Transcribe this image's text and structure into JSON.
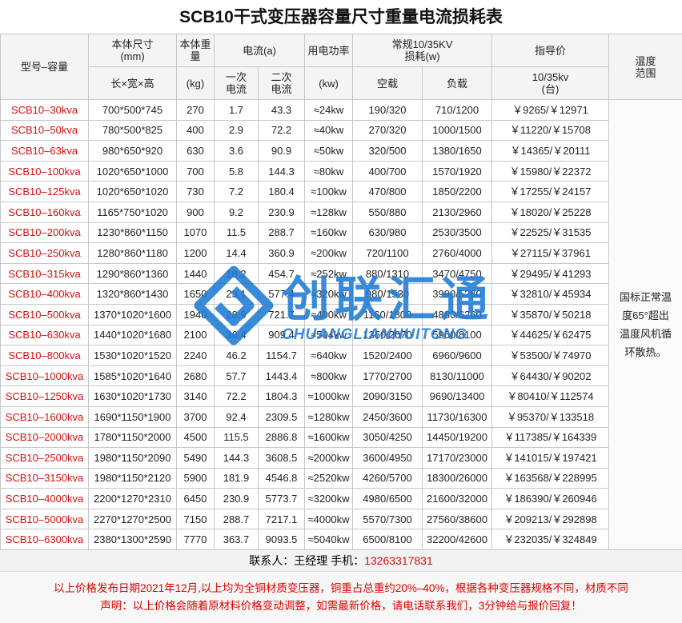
{
  "title": "SCB10干式变压器容量尺寸重量电流损耗表",
  "header": {
    "model": "型号–容量",
    "dims": [
      "本体尺寸",
      "(mm)"
    ],
    "dims_sub": "长×宽×高",
    "weight": "本体重量",
    "weight_unit": "(kg)",
    "current": "电流(a)",
    "current_primary": "一次电流",
    "current_secondary": "二次电流",
    "power": "用电功率",
    "power_unit": "(kw)",
    "loss": [
      "常规10/35KV",
      "损耗(w)"
    ],
    "loss_noload": "空载",
    "loss_load": "负载",
    "price": "指导价",
    "price_sub": [
      "10/35kv",
      "(台)"
    ],
    "temp": "温度范围"
  },
  "temp_note": "国标正常温度65°超出温度风机循环散热。",
  "table": {
    "rows": [
      [
        "SCB10–30kva",
        "700*500*745",
        "270",
        "1.7",
        "43.3",
        "≈24kw",
        "190/320",
        "710/1200",
        "￥9265/￥12971"
      ],
      [
        "SCB10–50kva",
        "780*500*825",
        "400",
        "2.9",
        "72.2",
        "≈40kw",
        "270/320",
        "1000/1500",
        "￥11220/￥15708"
      ],
      [
        "SCB10–63kva",
        "980*650*920",
        "630",
        "3.6",
        "90.9",
        "≈50kw",
        "320/500",
        "1380/1650",
        "￥14365/￥20111"
      ],
      [
        "SCB10–100kva",
        "1020*650*1000",
        "700",
        "5.8",
        "144.3",
        "≈80kw",
        "400/700",
        "1570/1920",
        "￥15980/￥22372"
      ],
      [
        "SCB10–125kva",
        "1020*650*1020",
        "730",
        "7.2",
        "180.4",
        "≈100kw",
        "470/800",
        "1850/2200",
        "￥17255/￥24157"
      ],
      [
        "SCB10–160kva",
        "1165*750*1020",
        "900",
        "9.2",
        "230.9",
        "≈128kw",
        "550/880",
        "2130/2960",
        "￥18020/￥25228"
      ],
      [
        "SCB10–200kva",
        "1230*860*1150",
        "1070",
        "11.5",
        "288.7",
        "≈160kw",
        "630/980",
        "2530/3500",
        "￥22525/￥31535"
      ],
      [
        "SCB10–250kva",
        "1280*860*1180",
        "1200",
        "14.4",
        "360.9",
        "≈200kw",
        "720/1100",
        "2760/4000",
        "￥27115/￥37961"
      ],
      [
        "SCB10–315kva",
        "1290*860*1360",
        "1440",
        "18.2",
        "454.7",
        "≈252kw",
        "880/1310",
        "3470/4750",
        "￥29495/￥41293"
      ],
      [
        "SCB10–400kva",
        "1320*860*1430",
        "1650",
        "23.1",
        "577.4",
        "≈320kw",
        "980/1530",
        "3990/5280",
        "￥32810/￥45934"
      ],
      [
        "SCB10–500kva",
        "1370*1020*1600",
        "1940",
        "28.9",
        "721.7",
        "≈400kw",
        "1160/1800",
        "4880/6260",
        "￥35870/￥50218"
      ],
      [
        "SCB10–630kva",
        "1440*1020*1680",
        "2100",
        "36.4",
        "909.4",
        "≈504kw",
        "1350/2070",
        "5960/8100",
        "￥44625/￥62475"
      ],
      [
        "SCB10–800kva",
        "1530*1020*1520",
        "2240",
        "46.2",
        "1154.7",
        "≈640kw",
        "1520/2400",
        "6960/9600",
        "￥53500/￥74970"
      ],
      [
        "SCB10–1000kva",
        "1585*1020*1640",
        "2680",
        "57.7",
        "1443.4",
        "≈800kw",
        "1770/2700",
        "8130/11000",
        "￥64430/￥90202"
      ],
      [
        "SCB10–1250kva",
        "1630*1020*1730",
        "3140",
        "72.2",
        "1804.3",
        "≈1000kw",
        "2090/3150",
        "9690/13400",
        "￥80410/￥112574"
      ],
      [
        "SCB10–1600kva",
        "1690*1150*1900",
        "3700",
        "92.4",
        "2309.5",
        "≈1280kw",
        "2450/3600",
        "11730/16300",
        "￥95370/￥133518"
      ],
      [
        "SCB10–2000kva",
        "1780*1150*2000",
        "4500",
        "115.5",
        "2886.8",
        "≈1600kw",
        "3050/4250",
        "14450/19200",
        "￥117385/￥164339"
      ],
      [
        "SCB10–2500kva",
        "1980*1150*2090",
        "5490",
        "144.3",
        "3608.5",
        "≈2000kw",
        "3600/4950",
        "17170/23000",
        "￥141015/￥197421"
      ],
      [
        "SCB10–3150kva",
        "1980*1150*2120",
        "5900",
        "181.9",
        "4546.8",
        "≈2520kw",
        "4260/5700",
        "18300/26000",
        "￥163568/￥228995"
      ],
      [
        "SCB10–4000kva",
        "2200*1270*2310",
        "6450",
        "230.9",
        "5773.7",
        "≈3200kw",
        "4980/6500",
        "21600/32000",
        "￥186390/￥260946"
      ],
      [
        "SCB10–5000kva",
        "2270*1270*2500",
        "7150",
        "288.7",
        "7217.1",
        "≈4000kw",
        "5570/7300",
        "27560/38600",
        "￥209213/￥292898"
      ],
      [
        "SCB10–6300kva",
        "2380*1300*2590",
        "7770",
        "363.7",
        "9093.5",
        "≈5040kw",
        "6500/8100",
        "32200/42600",
        "￥232035/￥324849"
      ]
    ]
  },
  "footer": {
    "contact": "联系人：王经理  手机：",
    "phone": "13263317831",
    "note1": "以上价格发布日期2021年12月,以上均为全铜材质变压器，铜重占总重约20%–40%，根据各种变压器规格不同，材质不同",
    "note2": "声明：以上价格会随着原材料价格变动调整，如需最新价格，请电话联系我们，3分钟给与报价回复！"
  },
  "watermark": {
    "brand": "创联汇通",
    "pinyin": "CHUANGLIANHUITONG"
  }
}
